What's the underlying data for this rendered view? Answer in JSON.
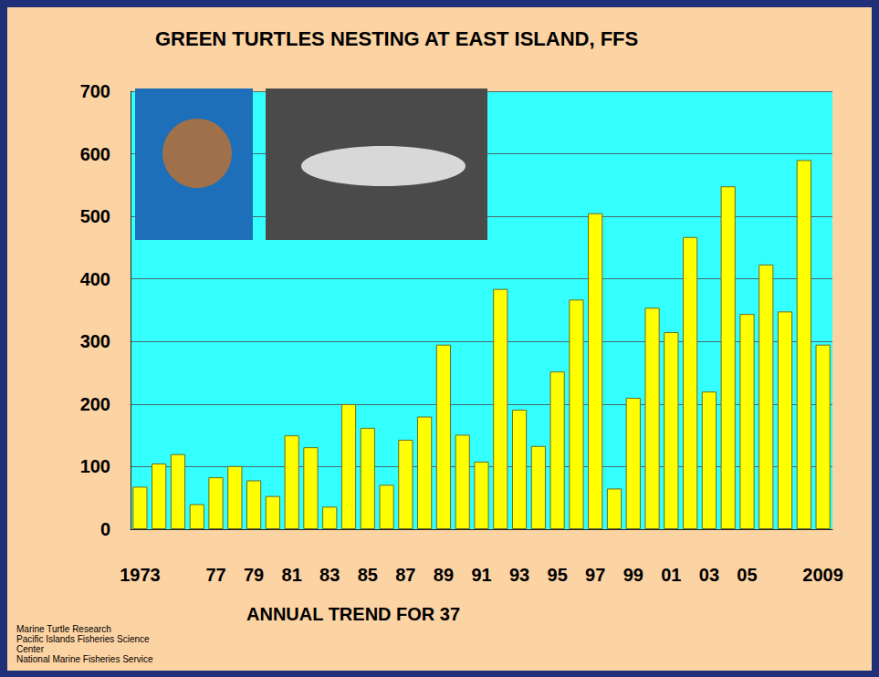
{
  "chart_data": {
    "type": "bar",
    "title": "GREEN TURTLES NESTING AT EAST ISLAND, FFS",
    "xlabel": "ANNUAL TREND FOR 37",
    "annotations": [
      "Marine Turtle Research",
      "Pacific Islands Fisheries Science",
      "Center",
      "National Marine Fisheries Service"
    ],
    "categories": [
      "1973",
      null,
      null,
      null,
      "77",
      null,
      "79",
      null,
      "81",
      null,
      "83",
      null,
      "85",
      null,
      "87",
      null,
      "89",
      null,
      "91",
      null,
      "93",
      null,
      "95",
      null,
      "97",
      null,
      "99",
      null,
      "01",
      null,
      "03",
      null,
      "05",
      null,
      null,
      null,
      "2009"
    ],
    "values": [
      68,
      105,
      120,
      40,
      83,
      101,
      78,
      53,
      150,
      131,
      36,
      200,
      162,
      71,
      143,
      180,
      295,
      151,
      108,
      384,
      191,
      133,
      252,
      367,
      505,
      65,
      210,
      354,
      315,
      467,
      220,
      548,
      344,
      423,
      348,
      590,
      295
    ],
    "color": "#ffff00",
    "ylim": [
      0,
      700
    ],
    "yticks": [
      0,
      100,
      200,
      300,
      400,
      500,
      600,
      700
    ],
    "grid": true
  }
}
